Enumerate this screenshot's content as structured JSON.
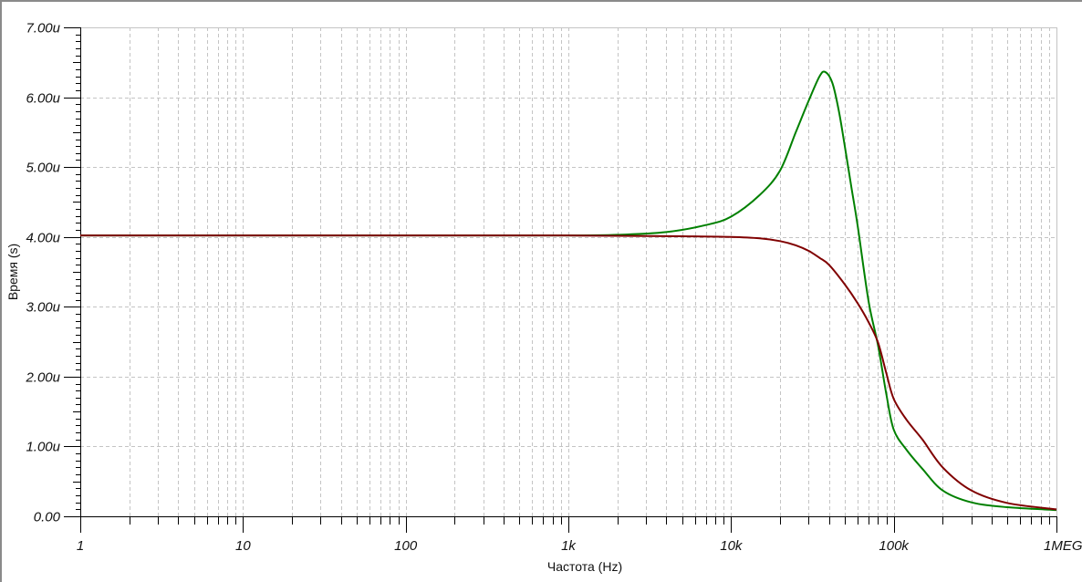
{
  "chart_data": {
    "type": "line",
    "title": "",
    "xlabel": "Частота (Hz)",
    "ylabel": "Время (s)",
    "x_scale": "log",
    "xlim": [
      1,
      1000000
    ],
    "ylim": [
      0,
      7e-06
    ],
    "grid": true,
    "x_ticks": [
      {
        "value": 1,
        "label": "1"
      },
      {
        "value": 10,
        "label": "10"
      },
      {
        "value": 100,
        "label": "100"
      },
      {
        "value": 1000,
        "label": "1k"
      },
      {
        "value": 10000,
        "label": "10k"
      },
      {
        "value": 100000,
        "label": "100k"
      },
      {
        "value": 1000000,
        "label": "1MEG"
      }
    ],
    "y_ticks": [
      {
        "value": 0,
        "label": "0.00"
      },
      {
        "value": 1e-06,
        "label": "1.00u"
      },
      {
        "value": 2e-06,
        "label": "2.00u"
      },
      {
        "value": 3e-06,
        "label": "3.00u"
      },
      {
        "value": 4e-06,
        "label": "4.00u"
      },
      {
        "value": 5e-06,
        "label": "5.00u"
      },
      {
        "value": 6e-06,
        "label": "6.00u"
      },
      {
        "value": 7e-06,
        "label": "7.00u"
      }
    ],
    "series": [
      {
        "color": "#008000",
        "x": [
          1,
          100,
          1000,
          2000,
          4000,
          7000,
          10000,
          15000,
          20000,
          25000,
          30000,
          35000,
          38000,
          42000,
          46000,
          50000,
          55000,
          60000,
          70000,
          80000,
          90000,
          100000,
          120000,
          150000,
          200000,
          300000,
          500000,
          1000000
        ],
        "y": [
          4.02e-06,
          4.02e-06,
          4.02e-06,
          4.03e-06,
          4.07e-06,
          4.17e-06,
          4.29e-06,
          4.6e-06,
          4.95e-06,
          5.5e-06,
          5.95e-06,
          6.3e-06,
          6.36e-06,
          6.2e-06,
          5.8e-06,
          5.3e-06,
          4.7e-06,
          4.16e-06,
          3.08e-06,
          2.45e-06,
          1.75e-06,
          1.24e-06,
          9.5e-07,
          6.8e-07,
          3.7e-07,
          2e-07,
          1.3e-07,
          9e-08
        ]
      },
      {
        "color": "#800000",
        "x": [
          1,
          100,
          1000,
          5000,
          10000,
          15000,
          20000,
          25000,
          30000,
          35000,
          40000,
          50000,
          60000,
          70000,
          80000,
          90000,
          100000,
          120000,
          150000,
          200000,
          300000,
          500000,
          1000000
        ],
        "y": [
          4.02e-06,
          4.02e-06,
          4.02e-06,
          4.01e-06,
          4e-06,
          3.98e-06,
          3.94e-06,
          3.88e-06,
          3.8e-06,
          3.7e-06,
          3.6e-06,
          3.32e-06,
          3.05e-06,
          2.78e-06,
          2.49e-06,
          2.05e-06,
          1.68e-06,
          1.38e-06,
          1.1e-06,
          7e-07,
          3.7e-07,
          1.9e-07,
          1e-07
        ]
      }
    ]
  }
}
